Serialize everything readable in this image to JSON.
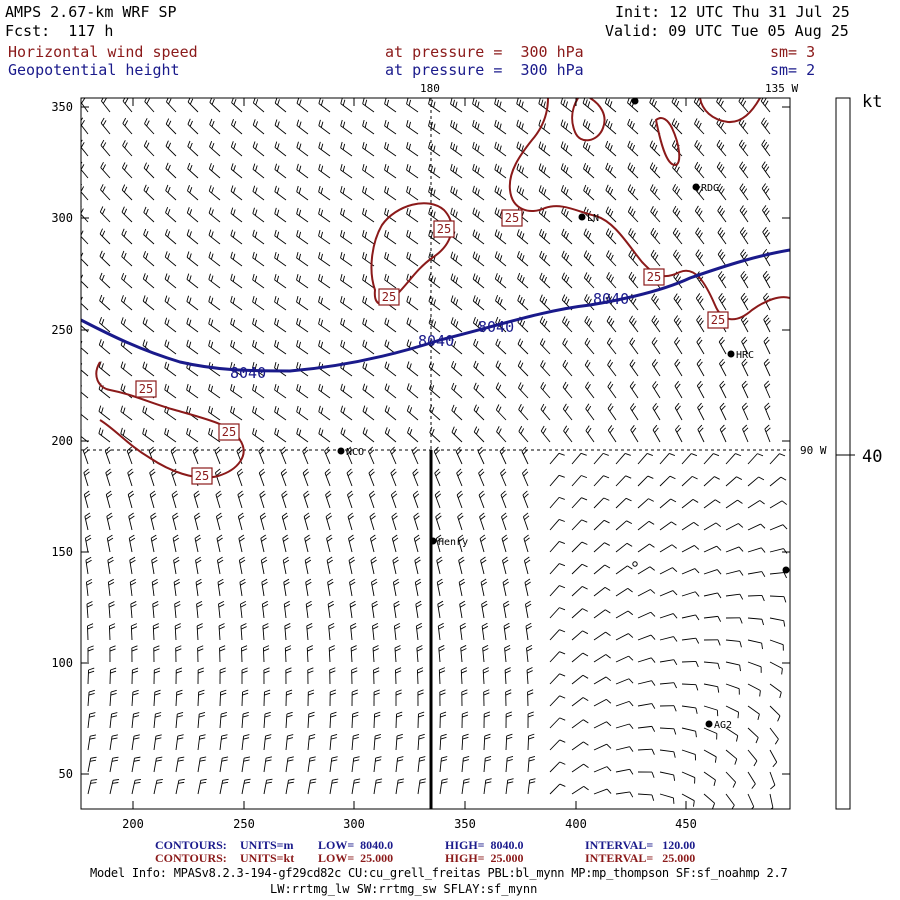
{
  "header": {
    "model": "AMPS 2.67-km WRF SP",
    "init": "Init: 12 UTC Thu 31 Jul 25",
    "fcst": "Fcst:  117 h",
    "valid": "Valid: 09 UTC Tue 05 Aug 25",
    "field1": {
      "name": "Horizontal wind speed",
      "level": "at pressure =  300 hPa",
      "smooth": "sm= 3",
      "color": "#8b1a1a"
    },
    "field2": {
      "name": "Geopotential height",
      "level": "at pressure =  300 hPa",
      "smooth": "sm= 2",
      "color": "#1a1a8b"
    }
  },
  "map": {
    "x_ticks": [
      "200",
      "250",
      "300",
      "350",
      "400",
      "450"
    ],
    "y_ticks": [
      "350",
      "300",
      "250",
      "200",
      "150",
      "100",
      "50"
    ],
    "meridian_labels": {
      "top_180": "180",
      "top_135w": "135 W",
      "right_90w": "90 W"
    },
    "height_contour_label": "8040",
    "wind_contour_label": "25",
    "stations": [
      {
        "id": "RDG"
      },
      {
        "id": "LN"
      },
      {
        "id": "HRC"
      },
      {
        "id": "NCO"
      },
      {
        "id": "Henry"
      },
      {
        "id": "AG2"
      }
    ]
  },
  "colorbar": {
    "unit": "kt",
    "tick": "40"
  },
  "footer": {
    "contours1": {
      "label": "CONTOURS:",
      "units": "UNITS=m",
      "low": "LOW=  8040.0",
      "high": "HIGH=  8040.0",
      "interval": "INTERVAL=   120.00",
      "color": "#1a1a8b"
    },
    "contours2": {
      "label": "CONTOURS:",
      "units": "UNITS=kt",
      "low": "LOW=  25.000",
      "high": "HIGH=  25.000",
      "interval": "INTERVAL=   25.000",
      "color": "#8b1a1a"
    },
    "model_info_1": "Model Info: MPASv8.2.3-194-gf29cd82c CU:cu_grell_freitas PBL:bl_mynn MP:mp_thompson SF:sf_noahmp 2.7",
    "model_info_2": "LW:rrtmg_lw SW:rrtmg_sw SFLAY:sf_mynn"
  }
}
